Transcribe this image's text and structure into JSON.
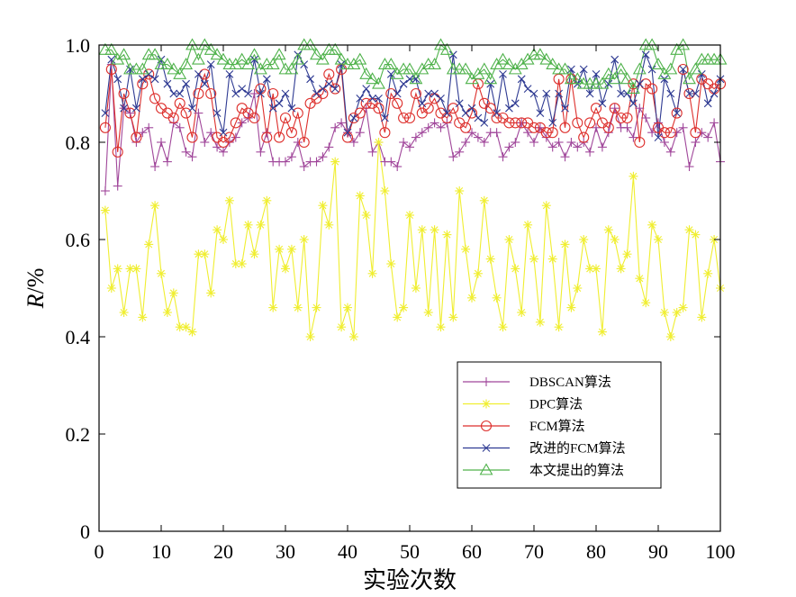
{
  "chart_data": {
    "type": "line",
    "xlabel": "实验次数",
    "ylabel_italic": "R",
    "ylabel_unit": "/%",
    "xlim": [
      0,
      100
    ],
    "ylim": [
      0,
      1.0
    ],
    "xticks": [
      0,
      10,
      20,
      30,
      40,
      50,
      60,
      70,
      80,
      90,
      100
    ],
    "yticks": [
      0,
      0.2,
      0.4,
      0.6,
      0.8,
      1.0
    ],
    "ytick_labels": [
      "0",
      "0.2",
      "0.4",
      "0.6",
      "0.8",
      "1.0"
    ],
    "grid": false,
    "legend_position": "lower-right",
    "x": [
      1,
      2,
      3,
      4,
      5,
      6,
      7,
      8,
      9,
      10,
      11,
      12,
      13,
      14,
      15,
      16,
      17,
      18,
      19,
      20,
      21,
      22,
      23,
      24,
      25,
      26,
      27,
      28,
      29,
      30,
      31,
      32,
      33,
      34,
      35,
      36,
      37,
      38,
      39,
      40,
      41,
      42,
      43,
      44,
      45,
      46,
      47,
      48,
      49,
      50,
      51,
      52,
      53,
      54,
      55,
      56,
      57,
      58,
      59,
      60,
      61,
      62,
      63,
      64,
      65,
      66,
      67,
      68,
      69,
      70,
      71,
      72,
      73,
      74,
      75,
      76,
      77,
      78,
      79,
      80,
      81,
      82,
      83,
      84,
      85,
      86,
      87,
      88,
      89,
      90,
      91,
      92,
      93,
      94,
      95,
      96,
      97,
      98,
      99,
      100
    ],
    "series": [
      {
        "name": "DBSCAN算法",
        "color": "#a0469a",
        "marker": "plus",
        "values": [
          0.7,
          0.96,
          0.71,
          0.87,
          0.86,
          0.8,
          0.82,
          0.83,
          0.75,
          0.8,
          0.76,
          0.84,
          0.83,
          0.78,
          0.77,
          0.86,
          0.8,
          0.82,
          0.79,
          0.78,
          0.8,
          0.81,
          0.84,
          0.85,
          0.9,
          0.78,
          0.82,
          0.76,
          0.76,
          0.76,
          0.77,
          0.8,
          0.75,
          0.76,
          0.76,
          0.77,
          0.79,
          0.83,
          0.84,
          0.82,
          0.8,
          0.82,
          0.87,
          0.78,
          0.8,
          0.76,
          0.76,
          0.75,
          0.8,
          0.79,
          0.81,
          0.82,
          0.83,
          0.84,
          0.83,
          0.84,
          0.77,
          0.78,
          0.8,
          0.82,
          0.81,
          0.8,
          0.82,
          0.82,
          0.77,
          0.79,
          0.8,
          0.84,
          0.82,
          0.8,
          0.83,
          0.81,
          0.79,
          0.8,
          0.77,
          0.8,
          0.79,
          0.8,
          0.78,
          0.83,
          0.79,
          0.82,
          0.87,
          0.83,
          0.83,
          0.81,
          0.87,
          0.85,
          0.82,
          0.84,
          0.8,
          0.78,
          0.82,
          0.83,
          0.75,
          0.8,
          0.82,
          0.81,
          0.84,
          0.76
        ]
      },
      {
        "name": "DPC算法",
        "color": "#f0ee30",
        "marker": "asterisk",
        "values": [
          0.66,
          0.5,
          0.54,
          0.45,
          0.54,
          0.54,
          0.44,
          0.59,
          0.67,
          0.53,
          0.45,
          0.49,
          0.42,
          0.42,
          0.41,
          0.57,
          0.57,
          0.49,
          0.62,
          0.6,
          0.68,
          0.55,
          0.55,
          0.63,
          0.57,
          0.63,
          0.68,
          0.46,
          0.58,
          0.54,
          0.58,
          0.46,
          0.6,
          0.4,
          0.46,
          0.67,
          0.63,
          0.76,
          0.42,
          0.46,
          0.4,
          0.69,
          0.65,
          0.53,
          0.8,
          0.7,
          0.55,
          0.44,
          0.46,
          0.65,
          0.5,
          0.62,
          0.45,
          0.62,
          0.42,
          0.61,
          0.44,
          0.7,
          0.58,
          0.48,
          0.53,
          0.68,
          0.56,
          0.48,
          0.42,
          0.6,
          0.54,
          0.45,
          0.63,
          0.56,
          0.43,
          0.67,
          0.56,
          0.42,
          0.59,
          0.46,
          0.5,
          0.6,
          0.54,
          0.54,
          0.41,
          0.62,
          0.6,
          0.54,
          0.57,
          0.73,
          0.52,
          0.47,
          0.63,
          0.6,
          0.45,
          0.4,
          0.45,
          0.46,
          0.62,
          0.61,
          0.44,
          0.53,
          0.6,
          0.5
        ]
      },
      {
        "name": "FCM算法",
        "color": "#dd2f2c",
        "marker": "circle",
        "values": [
          0.83,
          0.95,
          0.78,
          0.9,
          0.86,
          0.81,
          0.92,
          0.94,
          0.89,
          0.87,
          0.86,
          0.85,
          0.88,
          0.86,
          0.81,
          0.9,
          0.94,
          0.9,
          0.81,
          0.8,
          0.81,
          0.84,
          0.87,
          0.86,
          0.85,
          0.91,
          0.81,
          0.9,
          0.81,
          0.85,
          0.82,
          0.86,
          0.8,
          0.88,
          0.89,
          0.9,
          0.94,
          0.91,
          0.95,
          0.81,
          0.85,
          0.86,
          0.88,
          0.88,
          0.87,
          0.82,
          0.9,
          0.88,
          0.85,
          0.85,
          0.9,
          0.86,
          0.87,
          0.89,
          0.86,
          0.85,
          0.87,
          0.84,
          0.83,
          0.86,
          0.92,
          0.88,
          0.87,
          0.85,
          0.85,
          0.84,
          0.84,
          0.84,
          0.84,
          0.83,
          0.83,
          0.82,
          0.82,
          0.93,
          0.83,
          0.93,
          0.84,
          0.81,
          0.84,
          0.87,
          0.84,
          0.83,
          0.87,
          0.85,
          0.85,
          0.92,
          0.8,
          0.92,
          0.91,
          0.83,
          0.82,
          0.82,
          0.86,
          0.95,
          0.9,
          0.82,
          0.93,
          0.92,
          0.91,
          0.92
        ]
      },
      {
        "name": "改进的FCM算法",
        "color": "#2e3a92",
        "marker": "x",
        "values": [
          0.86,
          0.97,
          0.93,
          0.87,
          0.95,
          0.87,
          0.93,
          0.94,
          0.93,
          0.97,
          0.92,
          0.9,
          0.9,
          0.92,
          0.87,
          0.94,
          0.92,
          0.96,
          0.86,
          0.82,
          0.94,
          0.9,
          0.91,
          0.9,
          0.97,
          0.9,
          0.93,
          0.87,
          0.88,
          0.9,
          0.87,
          0.98,
          0.96,
          0.93,
          0.9,
          0.91,
          0.92,
          0.91,
          0.96,
          0.82,
          0.85,
          0.89,
          0.91,
          0.89,
          0.89,
          0.85,
          0.94,
          0.9,
          0.92,
          0.93,
          0.93,
          0.88,
          0.9,
          0.9,
          0.89,
          0.86,
          0.98,
          0.88,
          0.86,
          0.87,
          0.85,
          0.84,
          0.92,
          0.86,
          0.94,
          0.87,
          0.88,
          0.93,
          0.91,
          0.9,
          0.86,
          0.9,
          0.84,
          0.9,
          0.87,
          0.95,
          0.92,
          0.95,
          0.9,
          0.94,
          0.88,
          0.92,
          0.97,
          0.9,
          0.9,
          0.88,
          0.92,
          0.98,
          0.95,
          0.81,
          0.93,
          0.9,
          0.86,
          0.95,
          0.9,
          0.9,
          0.94,
          0.88,
          0.9,
          0.93
        ]
      },
      {
        "name": "本文提出的算法",
        "color": "#4fb24b",
        "marker": "triangle",
        "values": [
          0.99,
          0.99,
          0.97,
          0.98,
          0.95,
          0.95,
          0.95,
          0.98,
          0.98,
          0.96,
          0.96,
          0.95,
          0.94,
          0.96,
          1.0,
          0.97,
          1.0,
          0.99,
          0.98,
          0.97,
          0.96,
          0.96,
          0.97,
          0.96,
          0.98,
          0.95,
          0.96,
          0.96,
          0.98,
          0.95,
          0.95,
          0.97,
          1.0,
          1.0,
          0.98,
          0.97,
          0.99,
          0.99,
          0.97,
          0.96,
          0.96,
          0.97,
          0.94,
          0.93,
          0.92,
          0.96,
          0.96,
          0.94,
          0.95,
          0.95,
          0.93,
          0.95,
          0.96,
          0.96,
          1.0,
          0.99,
          0.95,
          0.95,
          0.95,
          0.93,
          0.94,
          0.95,
          0.93,
          0.96,
          0.97,
          0.96,
          0.95,
          0.96,
          0.97,
          0.98,
          0.98,
          0.97,
          0.96,
          0.95,
          0.95,
          0.93,
          0.93,
          0.92,
          0.92,
          0.92,
          0.92,
          0.94,
          0.93,
          0.95,
          0.93,
          0.91,
          0.95,
          1.0,
          1.0,
          0.96,
          0.94,
          0.95,
          0.99,
          1.0,
          0.93,
          0.95,
          0.97,
          0.97,
          0.97,
          0.97
        ]
      }
    ]
  }
}
